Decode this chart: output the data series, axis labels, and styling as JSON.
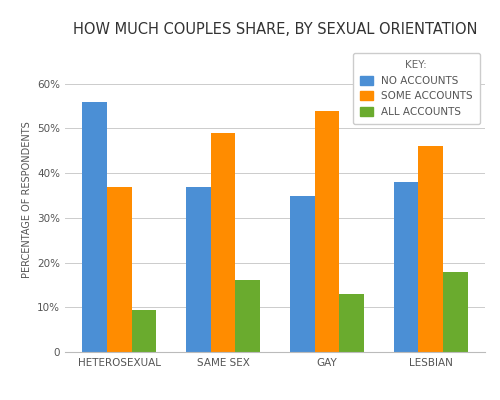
{
  "title": "HOW MUCH COUPLES SHARE, BY SEXUAL ORIENTATION",
  "categories": [
    "HETEROSEXUAL",
    "SAME SEX",
    "GAY",
    "LESBIAN"
  ],
  "series": {
    "NO ACCOUNTS": [
      56,
      37,
      35,
      38
    ],
    "SOME ACCOUNTS": [
      37,
      49,
      54,
      46
    ],
    "ALL ACCOUNTS": [
      9.5,
      16,
      13,
      18
    ]
  },
  "colors": {
    "NO ACCOUNTS": "#4B8FD5",
    "SOME ACCOUNTS": "#FF8C00",
    "ALL ACCOUNTS": "#6AAB2E"
  },
  "ylabel": "PERCENTAGE OF RESPONDENTS",
  "ylim": [
    0,
    68
  ],
  "yticks": [
    0,
    10,
    20,
    30,
    40,
    50,
    60
  ],
  "ytick_labels": [
    "0",
    "10%",
    "20%",
    "30%",
    "40%",
    "50%",
    "60%"
  ],
  "legend_title": "KEY:",
  "background_color": "#FFFFFF",
  "title_fontsize": 10.5,
  "ylabel_fontsize": 7,
  "tick_fontsize": 7.5,
  "legend_fontsize": 7.5
}
